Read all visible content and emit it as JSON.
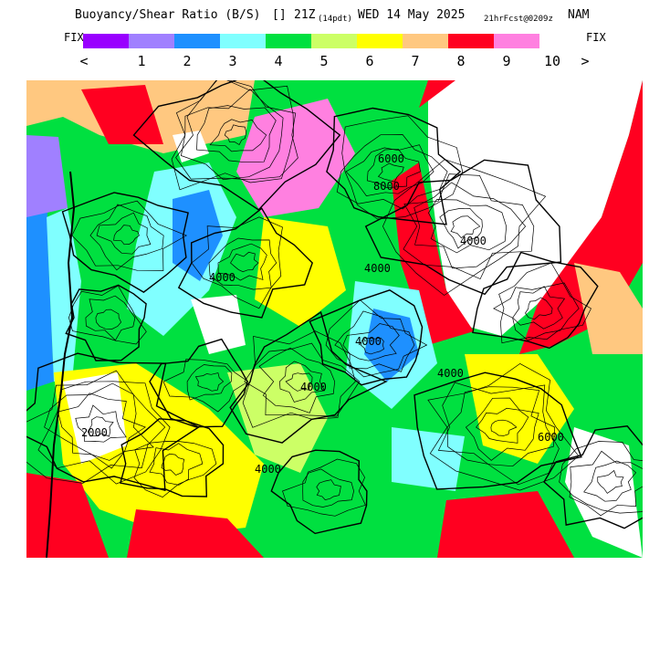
{
  "header": {
    "title_main": "Buoyancy/Shear Ratio (B/S)",
    "title_symbol": "[]",
    "title_hour": "21Z",
    "title_local": "(14pdt)",
    "title_date": "WED 14 May 2025",
    "title_fcst": "21hrFcst@0209z",
    "title_model": "NAM"
  },
  "scale": {
    "fix_left": "FIX",
    "fix_right": "FIX",
    "arrow_left": "<",
    "arrow_right": ">",
    "labels": [
      "1",
      "2",
      "3",
      "4",
      "5",
      "6",
      "7",
      "8",
      "9",
      "10"
    ],
    "colors": [
      "#9900ff",
      "#a080ff",
      "#1e90ff",
      "#80ffff",
      "#00e040",
      "#ccff66",
      "#ffff00",
      "#ffc880",
      "#ff0020",
      "#ff80e0"
    ]
  },
  "map": {
    "contour_labels": [
      "4000",
      "4000",
      "4000",
      "6000",
      "4000",
      "2000",
      "6000",
      "4000",
      "4000",
      "8000",
      "4000"
    ],
    "colors": {
      "ocean_blue": "#1e90ff",
      "ocean_lavender": "#a080ff",
      "ocean_cyan": "#80ffff",
      "white": "#ffffff",
      "contour": "#000000"
    }
  }
}
